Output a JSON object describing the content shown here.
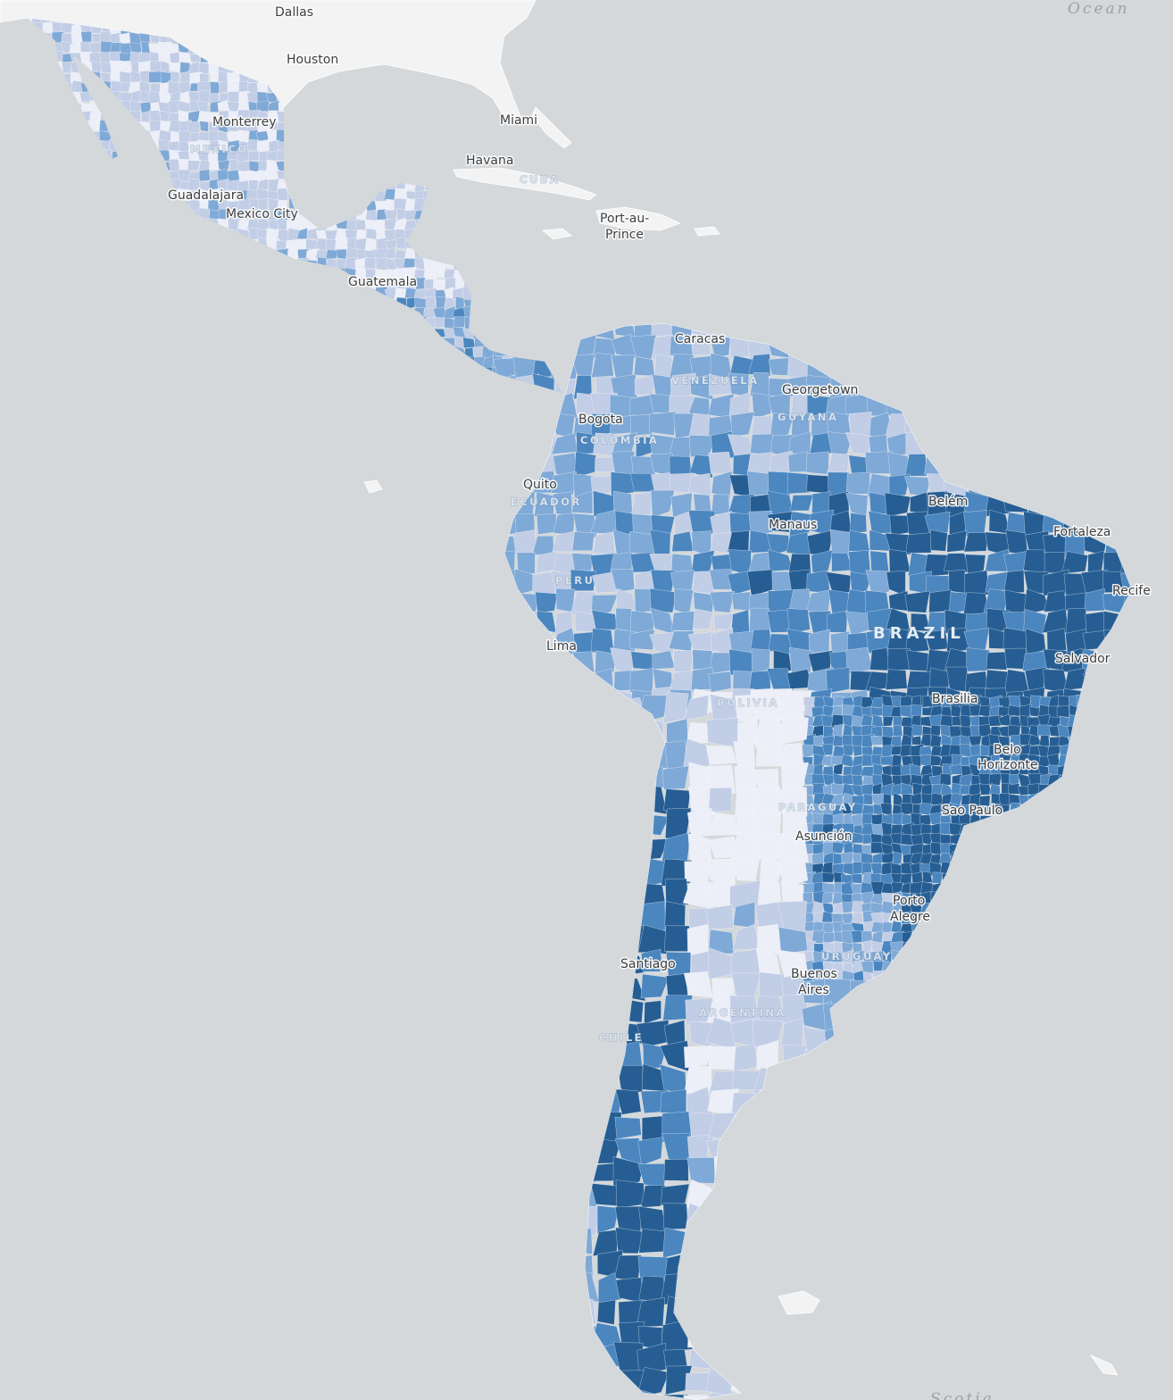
{
  "map": {
    "palette": {
      "ocean": "#d4d8da",
      "land_base": "#f3f3f3",
      "class_1": "#eceef8",
      "class_2": "#c2cde6",
      "class_3": "#7fa9d6",
      "class_4": "#4b86bf",
      "class_5": "#265e93"
    },
    "ocean_labels": [
      "Ocean",
      "Scotia"
    ],
    "countries": [
      "MEXICO",
      "CUBA",
      "VENEZUELA",
      "GUYANA",
      "COLOMBIA",
      "ECUADOR",
      "PERU",
      "BRAZIL",
      "BOLIVIA",
      "PARAGUAY",
      "URUGUAY",
      "ARGENTINA",
      "CHILE"
    ],
    "cities": [
      "Dallas",
      "Houston",
      "Miami",
      "Monterrey",
      "Havana",
      "Guadalajara",
      "Mexico City",
      "Port-au-",
      "Prince",
      "Guatemala",
      "Caracas",
      "Georgetown",
      "Bogota",
      "Quito",
      "Belém",
      "Manaus",
      "Fortaleza",
      "Recife",
      "Lima",
      "Salvador",
      "Brasilia",
      "Belo",
      "Horizonte",
      "Sao Paulo",
      "Asunción",
      "Porto",
      "Alegre",
      "Santiago",
      "Buenos",
      "Aires"
    ]
  }
}
